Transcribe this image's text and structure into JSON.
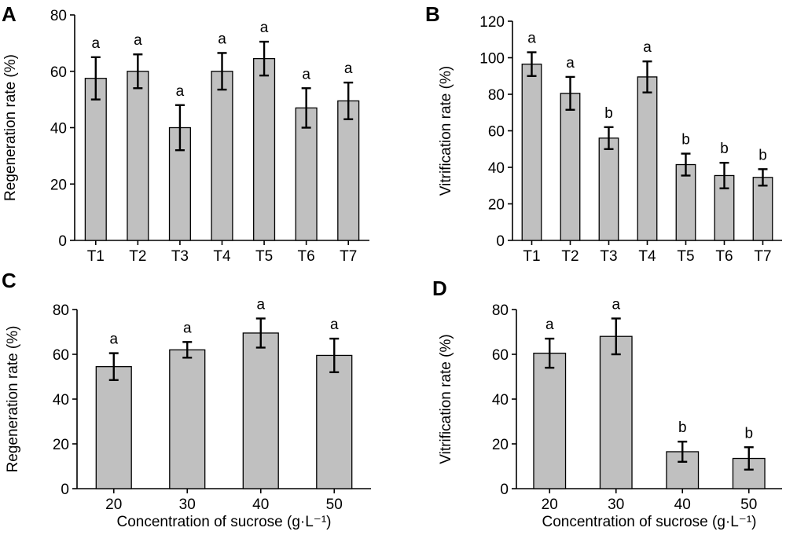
{
  "chart_data": [
    {
      "type": "bar",
      "panel_label": "A",
      "categories": [
        "T1",
        "T2",
        "T3",
        "T4",
        "T5",
        "T6",
        "T7"
      ],
      "values": [
        57.5,
        60,
        40,
        60,
        64.5,
        47,
        49.5
      ],
      "errors": [
        7.5,
        6,
        8,
        6.5,
        6,
        7,
        6.5
      ],
      "significance": [
        "a",
        "a",
        "a",
        "a",
        "a",
        "a",
        "a"
      ],
      "ylabel": "Regeneration rate (%)",
      "xlabel": "",
      "ylim": [
        0,
        80
      ],
      "yticks": [
        0,
        20,
        40,
        60,
        80
      ],
      "grid": false,
      "bar_color": "#c0c0c0"
    },
    {
      "type": "bar",
      "panel_label": "B",
      "categories": [
        "T1",
        "T2",
        "T3",
        "T4",
        "T5",
        "T6",
        "T7"
      ],
      "values": [
        96.5,
        80.5,
        56,
        89.5,
        41.5,
        35.5,
        34.5
      ],
      "errors": [
        6.5,
        9,
        6,
        8.5,
        6,
        7,
        4.5
      ],
      "significance": [
        "a",
        "a",
        "b",
        "a",
        "b",
        "b",
        "b"
      ],
      "ylabel": "Vitrification rate (%)",
      "xlabel": "",
      "ylim": [
        0,
        120
      ],
      "yticks": [
        0,
        20,
        40,
        60,
        80,
        100,
        120
      ],
      "grid": false,
      "bar_color": "#c0c0c0"
    },
    {
      "type": "bar",
      "panel_label": "C",
      "categories": [
        "20",
        "30",
        "40",
        "50"
      ],
      "values": [
        54.5,
        62,
        69.5,
        59.5
      ],
      "errors": [
        6,
        3.5,
        6.5,
        7.5
      ],
      "significance": [
        "a",
        "a",
        "a",
        "a"
      ],
      "ylabel": "Regeneration rate (%)",
      "xlabel": "Concentration of sucrose (g·L⁻¹)",
      "ylim": [
        0,
        80
      ],
      "yticks": [
        0,
        20,
        40,
        60,
        80
      ],
      "grid": false,
      "bar_color": "#c0c0c0"
    },
    {
      "type": "bar",
      "panel_label": "D",
      "categories": [
        "20",
        "30",
        "40",
        "50"
      ],
      "values": [
        60.5,
        68,
        16.5,
        13.5
      ],
      "errors": [
        6.5,
        8,
        4.5,
        5
      ],
      "significance": [
        "a",
        "a",
        "b",
        "b"
      ],
      "ylabel": "Vitrification rate (%)",
      "xlabel": "Concentration of sucrose (g·L⁻¹)",
      "ylim": [
        0,
        80
      ],
      "yticks": [
        0,
        20,
        40,
        60,
        80
      ],
      "grid": false,
      "bar_color": "#c0c0c0"
    }
  ]
}
